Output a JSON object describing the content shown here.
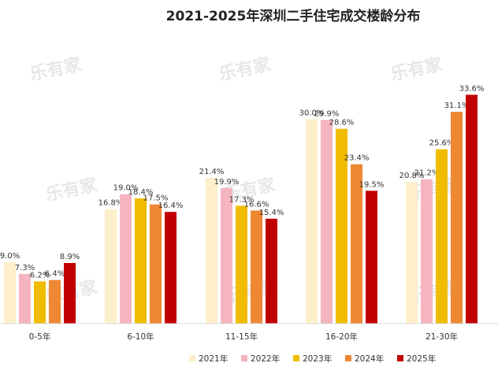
{
  "watermark": "乐有家",
  "chart_data": {
    "type": "bar",
    "title": "2021-2025年深圳二手住宅成交楼龄分布",
    "categories": [
      "0-5年",
      "6-10年",
      "11-15年",
      "16-20年",
      "21-30年"
    ],
    "series": [
      {
        "name": "2021年",
        "color": "#FDEFC9",
        "values": [
          9.0,
          16.8,
          21.4,
          30.0,
          20.8
        ],
        "labels": [
          "9.0%",
          "16.8%",
          "21.4%",
          "30.0%",
          "20.8%"
        ]
      },
      {
        "name": "2022年",
        "color": "#F4B4C0",
        "values": [
          7.3,
          19.0,
          19.9,
          29.9,
          21.2
        ],
        "labels": [
          "7.3%",
          "19.0%",
          "19.9%",
          "29.9%",
          "21.2%"
        ]
      },
      {
        "name": "2023年",
        "color": "#F0BC00",
        "values": [
          6.2,
          18.4,
          17.3,
          28.6,
          25.6
        ],
        "labels": [
          "6.2%",
          "18.4%",
          "17.3%",
          "28.6%",
          "25.6%"
        ]
      },
      {
        "name": "2024年",
        "color": "#EE8833",
        "values": [
          6.4,
          17.5,
          16.6,
          23.4,
          31.1
        ],
        "labels": [
          "6.4%",
          "17.5%",
          "16.6%",
          "23.4%",
          "31.1%"
        ]
      },
      {
        "name": "2025年",
        "color": "#C00000",
        "values": [
          8.9,
          16.4,
          15.4,
          19.5,
          33.6
        ],
        "labels": [
          "8.9%",
          "16.4%",
          "15.4%",
          "19.5%",
          "33.6%"
        ]
      }
    ],
    "ylim": [
      0,
      36
    ],
    "grid": false,
    "legend_position": "bottom"
  }
}
